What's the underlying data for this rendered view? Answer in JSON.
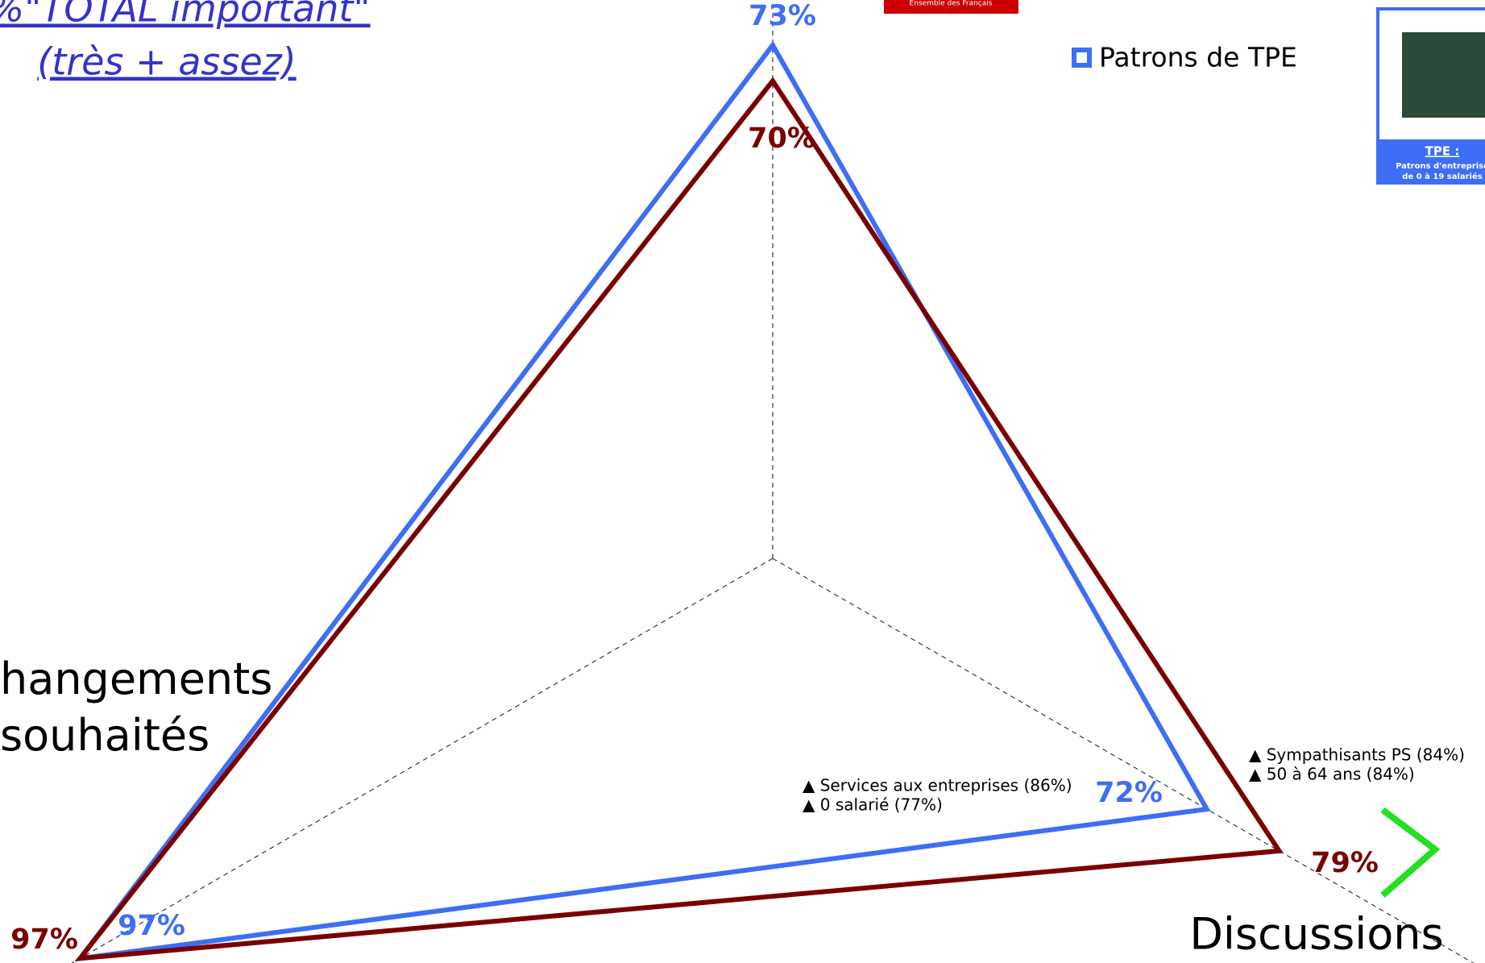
{
  "chart_data": {
    "type": "radar",
    "title": "%\"TOTAL important\"",
    "subtitle": "(très + assez)",
    "categories": [
      null,
      "Discussions",
      "hangements\nsouhaités"
    ],
    "rlim": [
      30,
      100
    ],
    "grid": true,
    "series": [
      {
        "name": "Patrons de TPE",
        "color": "#3d6ef5",
        "values": [
          73,
          72,
          97
        ],
        "value_labels": [
          "73%",
          "72%",
          "97%"
        ]
      },
      {
        "name": "Ensemble des Français",
        "color": "#7a0000",
        "values": [
          70,
          79,
          97
        ],
        "value_labels": [
          "70%",
          "79%",
          "97%"
        ]
      }
    ],
    "annotations": [
      "▲ Sympathisants PS (84%)",
      "▲ 50 à 64 ans (84%)",
      "▲ Services aux entreprises (86%)",
      "▲ 0 salarié (77%)"
    ],
    "badge": {
      "title": "TPE :",
      "line1": "Patrons d'entreprise",
      "line2": "de 0 à 19 salariés"
    }
  }
}
